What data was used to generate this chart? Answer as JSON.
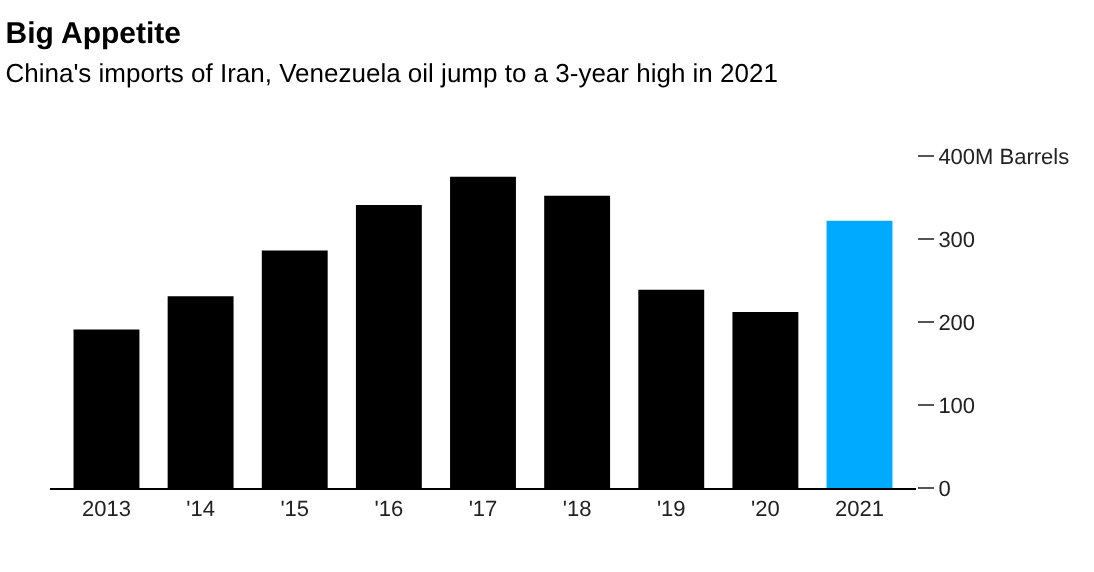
{
  "chart_data": {
    "type": "bar",
    "title": "Big Appetite",
    "subtitle": "China's imports of Iran, Venezuela oil jump to a 3-year high in 2021",
    "categories": [
      "2013",
      "'14",
      "'15",
      "'16",
      "'17",
      "'18",
      "'19",
      "'20",
      "2021"
    ],
    "values": [
      191,
      231,
      286,
      341,
      375,
      352,
      239,
      212,
      322
    ],
    "colors": [
      "#000000",
      "#000000",
      "#000000",
      "#000000",
      "#000000",
      "#000000",
      "#000000",
      "#000000",
      "#00aaff"
    ],
    "ylim": [
      0,
      400
    ],
    "yticks": [
      0,
      100,
      200,
      300,
      {
        "value": 400,
        "label": "400M Barrels"
      }
    ]
  }
}
